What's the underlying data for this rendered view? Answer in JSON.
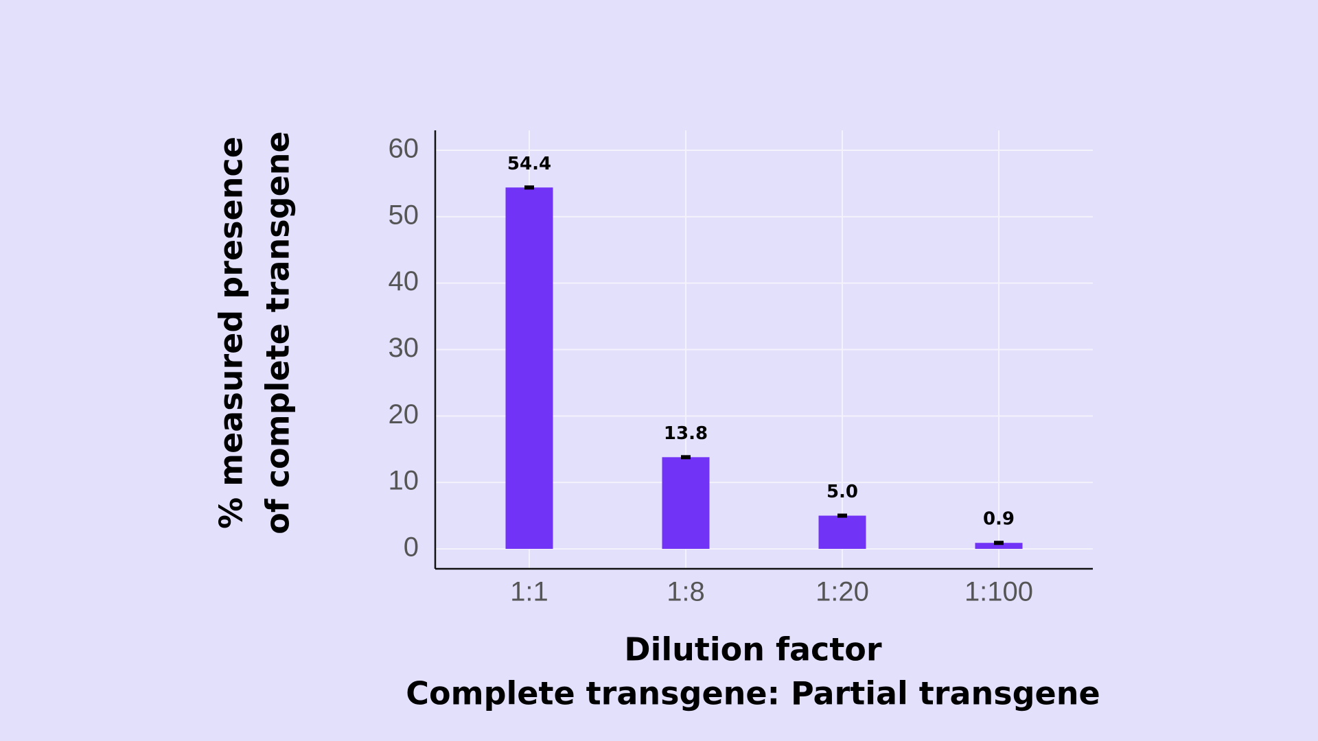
{
  "chart_data": {
    "type": "bar",
    "categories": [
      "1:1",
      "1:8",
      "1:20",
      "1:100"
    ],
    "values": [
      54.4,
      13.8,
      5.0,
      0.9
    ],
    "value_labels": [
      "54.4",
      "13.8",
      "5.0",
      "0.9"
    ],
    "color": "#7133f5",
    "ylim": [
      -3,
      63
    ],
    "yticks": [
      0,
      10,
      20,
      30,
      40,
      50,
      60
    ],
    "grid": true,
    "ylabel": [
      "% measured presence",
      "of complete transgene"
    ],
    "xlabel": [
      "Dilution factor",
      "Complete transgene: Partial transgene"
    ]
  }
}
